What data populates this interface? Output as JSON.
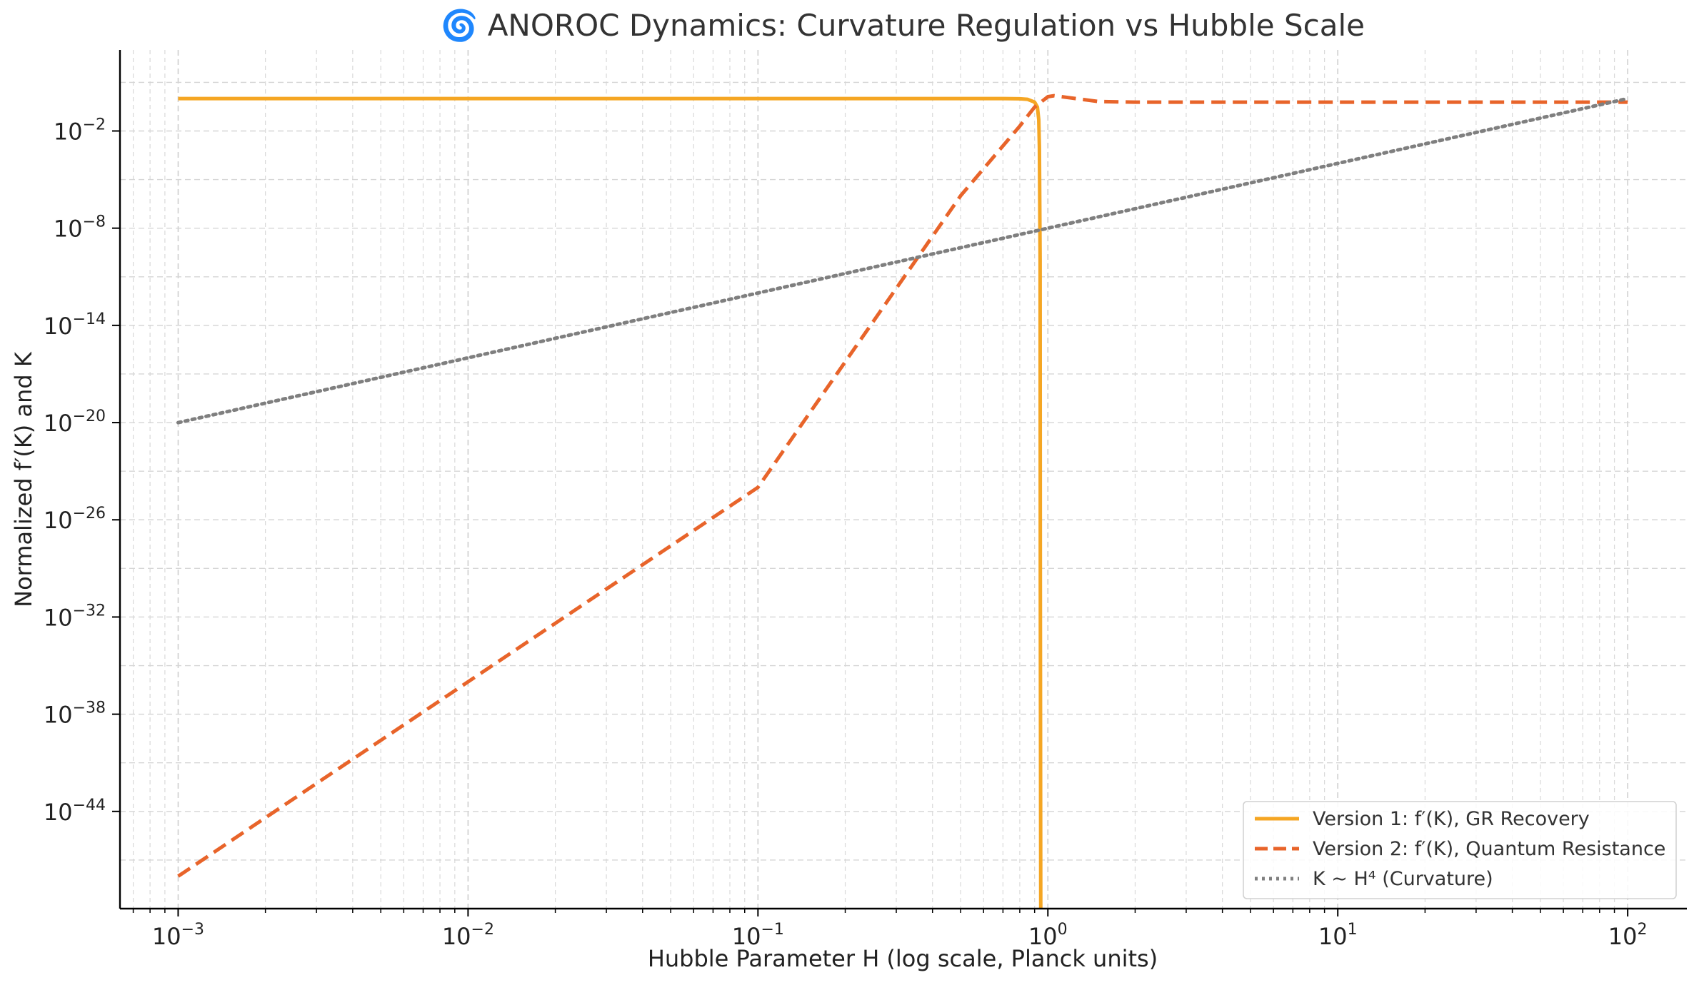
{
  "chart_data": {
    "type": "line",
    "title": "🌀 ANOROC Dynamics: Curvature Regulation vs Hubble Scale",
    "xlabel": "Hubble Parameter H (log scale, Planck units)",
    "ylabel": "Normalized f′(K) and K",
    "xscale": "log",
    "yscale": "log",
    "xlim": [
      0.00063,
      160.0
    ],
    "ylim": [
      1e-50,
      1000.0
    ],
    "grid": true,
    "legend_position": "lower-right",
    "x_ticks": [
      {
        "value": 0.001,
        "base": "10",
        "exp": "−3"
      },
      {
        "value": 0.01,
        "base": "10",
        "exp": "−2"
      },
      {
        "value": 0.1,
        "base": "10",
        "exp": "−1"
      },
      {
        "value": 1,
        "base": "10",
        "exp": "0"
      },
      {
        "value": 10,
        "base": "10",
        "exp": "1"
      },
      {
        "value": 100,
        "base": "10",
        "exp": "2"
      }
    ],
    "y_ticks": [
      {
        "value": 0.01,
        "base": "10",
        "exp": "−2"
      },
      {
        "value": 1e-08,
        "base": "10",
        "exp": "−8"
      },
      {
        "value": 1e-14,
        "base": "10",
        "exp": "−14"
      },
      {
        "value": 1e-20,
        "base": "10",
        "exp": "−20"
      },
      {
        "value": 1e-26,
        "base": "10",
        "exp": "−26"
      },
      {
        "value": 1e-32,
        "base": "10",
        "exp": "−32"
      },
      {
        "value": 1e-38,
        "base": "10",
        "exp": "−38"
      },
      {
        "value": 1e-44,
        "base": "10",
        "exp": "−44"
      }
    ],
    "series": [
      {
        "name": "Version 1: f′(K), GR Recovery",
        "color": "#f5a623",
        "style": "solid",
        "x": [
          0.001,
          0.01,
          0.1,
          0.5,
          0.7,
          0.8,
          0.85,
          0.9,
          0.92,
          0.93,
          0.935,
          0.94,
          0.942,
          0.945
        ],
        "y": [
          1,
          1,
          1,
          1,
          1,
          0.97,
          0.9,
          0.6,
          0.3,
          0.05,
          0.001,
          1e-10,
          1e-30,
          1e-52
        ]
      },
      {
        "name": "Version 2: f′(K), Quantum Resistance",
        "color": "#e8642a",
        "style": "dashed",
        "x": [
          0.001,
          0.01,
          0.1,
          0.5,
          0.8,
          0.9,
          1.0,
          1.05,
          1.2,
          1.5,
          2,
          5,
          10,
          50,
          100
        ],
        "y": [
          1e-48,
          1e-36,
          1e-24,
          1e-06,
          0.02,
          0.3,
          1.3,
          1.5,
          1.1,
          0.65,
          0.6,
          0.6,
          0.6,
          0.6,
          0.6
        ]
      },
      {
        "name": "K ∼ H⁴ (Curvature)",
        "color": "#7f7f7f",
        "style": "dotted",
        "x": [
          0.001,
          100
        ],
        "y": [
          1e-20,
          1
        ]
      }
    ]
  }
}
